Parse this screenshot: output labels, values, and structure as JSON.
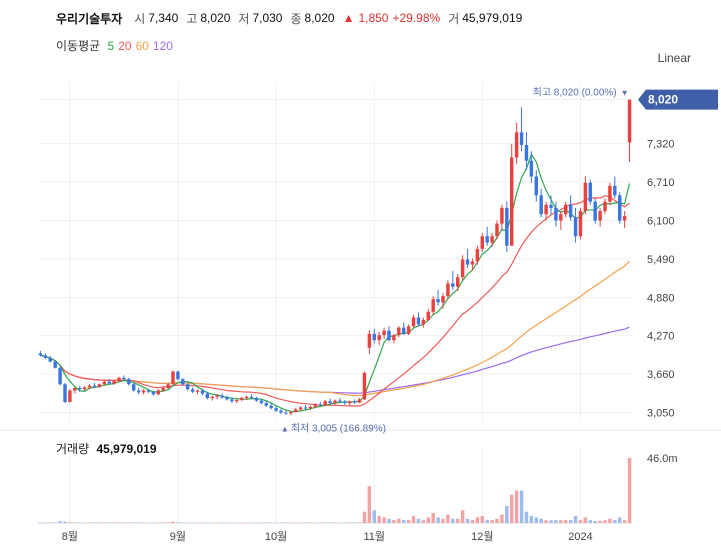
{
  "header": {
    "name": "우리기술투자",
    "open_label": "시",
    "open": "7,340",
    "high_label": "고",
    "high": "8,020",
    "low_label": "저",
    "low": "7,030",
    "close_label": "종",
    "close": "8,020",
    "change_arrow": "▲",
    "change": "1,850",
    "change_pct": "+29.98%",
    "volume_label": "거",
    "volume": "45,979,019"
  },
  "ma_legend": {
    "title": "이동평균",
    "items": [
      {
        "label": "5",
        "color": "#2fa84f"
      },
      {
        "label": "20",
        "color": "#f05a5a"
      },
      {
        "label": "60",
        "color": "#f5a04a"
      },
      {
        "label": "120",
        "color": "#9b6cf0"
      }
    ]
  },
  "scale_selector": "Linear",
  "volume_panel": {
    "title": "거래량",
    "value": "45,979,019",
    "max_label": "46.0m"
  },
  "colors": {
    "up": "#e8413e",
    "down": "#3a76e0",
    "vol_up": "#f3a3a3",
    "vol_down": "#9cbcf0",
    "price_tag": "#3f5fa8"
  },
  "chart_data": {
    "type": "candlestick",
    "y_ticks": [
      "8,020",
      "7,320",
      "6,710",
      "6,100",
      "5,490",
      "4,880",
      "4,270",
      "3,660",
      "3,050"
    ],
    "ylim": [
      2900,
      8300
    ],
    "x_ticks": [
      {
        "label": "8월",
        "index": 6
      },
      {
        "label": "9월",
        "index": 28
      },
      {
        "label": "10월",
        "index": 48
      },
      {
        "label": "11월",
        "index": 68
      },
      {
        "label": "12월",
        "index": 90
      },
      {
        "label": "2024",
        "index": 110
      }
    ],
    "last_price": "8,020",
    "annotations": {
      "high": {
        "text": "최고 8,020 (0.00%)",
        "arrow": "▼",
        "index": 119,
        "value": 8020
      },
      "low": {
        "text": "최저 3,005 (166.89%)",
        "arrow": "▲",
        "index": 51,
        "value": 3005
      }
    },
    "candles": [
      [
        3990,
        4030,
        3940,
        3960
      ],
      [
        3960,
        3990,
        3900,
        3920
      ],
      [
        3920,
        3950,
        3850,
        3860
      ],
      [
        3860,
        3880,
        3750,
        3760
      ],
      [
        3760,
        3780,
        3480,
        3500
      ],
      [
        3500,
        3520,
        3200,
        3220
      ],
      [
        3220,
        3420,
        3210,
        3400
      ],
      [
        3400,
        3460,
        3350,
        3440
      ],
      [
        3440,
        3480,
        3380,
        3420
      ],
      [
        3420,
        3470,
        3390,
        3450
      ],
      [
        3450,
        3500,
        3420,
        3480
      ],
      [
        3480,
        3520,
        3440,
        3460
      ],
      [
        3460,
        3510,
        3440,
        3500
      ],
      [
        3500,
        3560,
        3480,
        3540
      ],
      [
        3540,
        3580,
        3500,
        3510
      ],
      [
        3510,
        3560,
        3490,
        3550
      ],
      [
        3550,
        3620,
        3530,
        3600
      ],
      [
        3600,
        3640,
        3560,
        3580
      ],
      [
        3580,
        3600,
        3480,
        3500
      ],
      [
        3500,
        3530,
        3380,
        3400
      ],
      [
        3400,
        3440,
        3340,
        3370
      ],
      [
        3370,
        3420,
        3340,
        3400
      ],
      [
        3400,
        3430,
        3360,
        3380
      ],
      [
        3380,
        3400,
        3320,
        3340
      ],
      [
        3340,
        3420,
        3330,
        3400
      ],
      [
        3400,
        3460,
        3380,
        3440
      ],
      [
        3440,
        3520,
        3420,
        3500
      ],
      [
        3500,
        3720,
        3490,
        3700
      ],
      [
        3700,
        3720,
        3560,
        3580
      ],
      [
        3580,
        3600,
        3480,
        3500
      ],
      [
        3500,
        3520,
        3400,
        3420
      ],
      [
        3420,
        3450,
        3360,
        3380
      ],
      [
        3380,
        3420,
        3340,
        3400
      ],
      [
        3400,
        3430,
        3330,
        3350
      ],
      [
        3350,
        3380,
        3260,
        3280
      ],
      [
        3280,
        3320,
        3240,
        3300
      ],
      [
        3300,
        3340,
        3260,
        3320
      ],
      [
        3320,
        3350,
        3270,
        3290
      ],
      [
        3290,
        3320,
        3240,
        3260
      ],
      [
        3260,
        3290,
        3200,
        3230
      ],
      [
        3230,
        3270,
        3200,
        3250
      ],
      [
        3250,
        3300,
        3230,
        3280
      ],
      [
        3280,
        3320,
        3250,
        3300
      ],
      [
        3300,
        3340,
        3260,
        3280
      ],
      [
        3280,
        3300,
        3220,
        3240
      ],
      [
        3240,
        3270,
        3180,
        3200
      ],
      [
        3200,
        3230,
        3140,
        3160
      ],
      [
        3160,
        3200,
        3100,
        3120
      ],
      [
        3120,
        3150,
        3060,
        3080
      ],
      [
        3080,
        3110,
        3030,
        3050
      ],
      [
        3050,
        3080,
        3010,
        3040
      ],
      [
        3040,
        3070,
        3005,
        3060
      ],
      [
        3060,
        3120,
        3050,
        3100
      ],
      [
        3100,
        3150,
        3080,
        3130
      ],
      [
        3130,
        3170,
        3100,
        3120
      ],
      [
        3120,
        3160,
        3090,
        3140
      ],
      [
        3140,
        3200,
        3120,
        3180
      ],
      [
        3180,
        3220,
        3150,
        3160
      ],
      [
        3160,
        3250,
        3150,
        3230
      ],
      [
        3230,
        3270,
        3180,
        3200
      ],
      [
        3200,
        3260,
        3170,
        3240
      ],
      [
        3240,
        3280,
        3200,
        3220
      ],
      [
        3220,
        3250,
        3170,
        3200
      ],
      [
        3200,
        3240,
        3150,
        3230
      ],
      [
        3230,
        3260,
        3190,
        3210
      ],
      [
        3210,
        3280,
        3200,
        3260
      ],
      [
        3260,
        3700,
        3250,
        3680
      ],
      [
        4080,
        4360,
        3980,
        4300
      ],
      [
        4300,
        4380,
        4150,
        4200
      ],
      [
        4200,
        4330,
        4120,
        4280
      ],
      [
        4280,
        4400,
        4220,
        4350
      ],
      [
        4350,
        4420,
        4180,
        4200
      ],
      [
        4200,
        4300,
        4150,
        4280
      ],
      [
        4280,
        4420,
        4250,
        4400
      ],
      [
        4400,
        4480,
        4280,
        4300
      ],
      [
        4300,
        4450,
        4280,
        4420
      ],
      [
        4420,
        4600,
        4400,
        4560
      ],
      [
        4560,
        4640,
        4420,
        4450
      ],
      [
        4450,
        4560,
        4400,
        4520
      ],
      [
        4520,
        4700,
        4500,
        4650
      ],
      [
        4650,
        4900,
        4600,
        4850
      ],
      [
        4850,
        5000,
        4750,
        4800
      ],
      [
        4800,
        4950,
        4700,
        4900
      ],
      [
        4900,
        5150,
        4850,
        5100
      ],
      [
        5100,
        5300,
        5000,
        5050
      ],
      [
        5050,
        5250,
        4980,
        5200
      ],
      [
        5200,
        5550,
        5150,
        5480
      ],
      [
        5480,
        5650,
        5350,
        5400
      ],
      [
        5400,
        5500,
        5300,
        5450
      ],
      [
        5450,
        5700,
        5400,
        5650
      ],
      [
        5650,
        5900,
        5600,
        5850
      ],
      [
        5850,
        6000,
        5700,
        5750
      ],
      [
        5750,
        5900,
        5680,
        5850
      ],
      [
        5850,
        6100,
        5800,
        6050
      ],
      [
        6050,
        6350,
        5950,
        6300
      ],
      [
        6300,
        6400,
        5600,
        5700
      ],
      [
        5700,
        7320,
        5700,
        7100
      ],
      [
        7100,
        7650,
        7000,
        7500
      ],
      [
        7500,
        7900,
        7200,
        7300
      ],
      [
        7300,
        7500,
        6900,
        7050
      ],
      [
        7050,
        7200,
        6700,
        6800
      ],
      [
        6800,
        6900,
        6400,
        6500
      ],
      [
        6500,
        6600,
        6150,
        6200
      ],
      [
        6200,
        6400,
        6100,
        6350
      ],
      [
        6350,
        6500,
        6200,
        6300
      ],
      [
        6300,
        6400,
        6000,
        6100
      ],
      [
        6100,
        6250,
        5950,
        6200
      ],
      [
        6200,
        6400,
        6150,
        6350
      ],
      [
        6350,
        6500,
        6100,
        6150
      ],
      [
        6150,
        6300,
        5750,
        5850
      ],
      [
        5850,
        6300,
        5800,
        6250
      ],
      [
        6250,
        6800,
        6200,
        6700
      ],
      [
        6700,
        6750,
        6350,
        6400
      ],
      [
        6400,
        6450,
        6050,
        6100
      ],
      [
        6100,
        6300,
        6000,
        6250
      ],
      [
        6250,
        6450,
        6200,
        6400
      ],
      [
        6400,
        6700,
        6350,
        6650
      ],
      [
        6650,
        6800,
        6450,
        6500
      ],
      [
        6500,
        6550,
        6050,
        6100
      ],
      [
        6100,
        6250,
        5980,
        6170
      ],
      [
        7340,
        8020,
        7030,
        8020
      ]
    ],
    "volume_max": 46,
    "volumes": [
      0.3,
      0.2,
      0.3,
      0.4,
      1.2,
      0.9,
      0.6,
      0.4,
      0.3,
      0.3,
      0.3,
      0.3,
      0.3,
      0.4,
      0.3,
      0.3,
      0.4,
      0.3,
      0.3,
      0.4,
      0.3,
      0.3,
      0.2,
      0.2,
      0.3,
      0.3,
      0.4,
      1.0,
      0.5,
      0.3,
      0.3,
      0.2,
      0.2,
      0.2,
      0.3,
      0.2,
      0.2,
      0.2,
      0.2,
      0.2,
      0.2,
      0.2,
      0.2,
      0.2,
      0.2,
      0.3,
      0.3,
      0.3,
      0.3,
      0.3,
      0.3,
      0.3,
      0.3,
      0.3,
      0.3,
      0.3,
      0.3,
      0.3,
      0.4,
      0.3,
      0.3,
      0.3,
      0.3,
      0.3,
      0.3,
      0.5,
      8.0,
      26.0,
      9.0,
      5.0,
      4.0,
      3.0,
      2.0,
      3.0,
      2.0,
      2.0,
      5.0,
      3.0,
      2.0,
      4.0,
      7.0,
      4.0,
      3.0,
      6.0,
      3.0,
      3.0,
      9.0,
      3.0,
      2.0,
      4.0,
      5.0,
      2.0,
      2.0,
      3.0,
      6.0,
      12.0,
      20.0,
      23.0,
      23.0,
      8.0,
      5.0,
      4.0,
      3.0,
      2.0,
      2.0,
      2.0,
      2.0,
      2.0,
      2.0,
      5.0,
      2.0,
      4.0,
      2.0,
      1.5,
      1.5,
      2.0,
      3.0,
      2.0,
      4.0,
      2.0,
      46.0
    ]
  }
}
